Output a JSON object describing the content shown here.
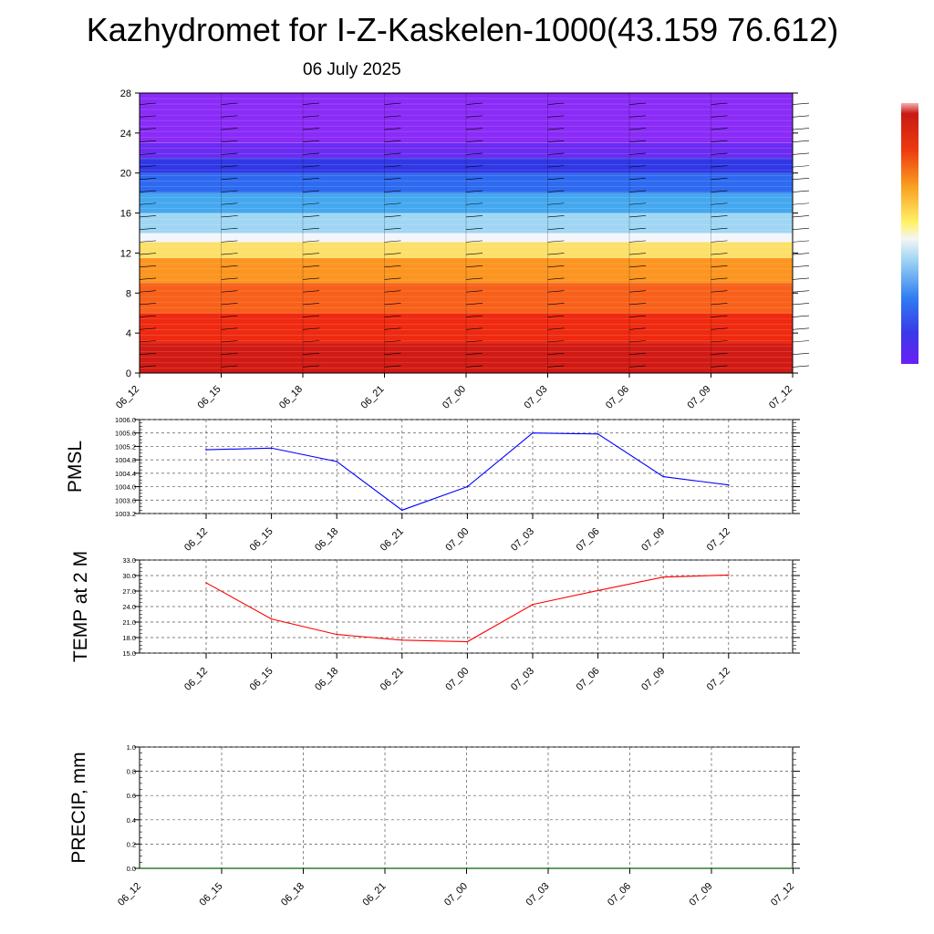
{
  "header": {
    "title": "Kazhydromet for I-Z-Kaskelen-1000(43.159 76.612)",
    "subtitle": "06 July 2025"
  },
  "colors": {
    "pmsl_line": "#0000ff",
    "temp_line": "#ff0000",
    "precip_line": "#006400",
    "grid": "#555555"
  },
  "chart_data": [
    {
      "type": "heatmap",
      "name": "vertical-profile",
      "xlabel": "",
      "ylabel": "",
      "x_tick_labels": [
        "06_12",
        "06_15",
        "06_18",
        "06_21",
        "07_00",
        "07_03",
        "07_06",
        "07_09",
        "07_12"
      ],
      "y_ticks": [
        0,
        4,
        8,
        12,
        16,
        20,
        24,
        28
      ],
      "ylim": [
        0,
        28
      ],
      "colorbar": "blue-violet-to-dark-red",
      "color_bands": [
        {
          "from": 0,
          "to": 3,
          "color": "#d11a14"
        },
        {
          "from": 3,
          "to": 6,
          "color": "#ef2a10"
        },
        {
          "from": 6,
          "to": 9,
          "color": "#f8601a"
        },
        {
          "from": 9,
          "to": 11.5,
          "color": "#fb9520"
        },
        {
          "from": 11.5,
          "to": 13.1,
          "color": "#fde06a"
        },
        {
          "from": 13.1,
          "to": 14,
          "color": "#f2f6fb"
        },
        {
          "from": 14,
          "to": 16,
          "color": "#9fd6f4"
        },
        {
          "from": 16,
          "to": 18,
          "color": "#45a8ef"
        },
        {
          "from": 18,
          "to": 20,
          "color": "#2e6af0"
        },
        {
          "from": 20,
          "to": 21.5,
          "color": "#3037e4"
        },
        {
          "from": 21.5,
          "to": 23,
          "color": "#6b2cf2"
        },
        {
          "from": 23,
          "to": 28,
          "color": "#8a2bf7"
        }
      ]
    },
    {
      "type": "line",
      "name": "pmsl",
      "ylabel": "PMSL",
      "categories": [
        "06_12",
        "06_15",
        "06_18",
        "06_21",
        "07_00",
        "07_03",
        "07_06",
        "07_09",
        "07_12"
      ],
      "values": [
        1005.1,
        1005.15,
        1004.75,
        1003.3,
        1004.0,
        1005.6,
        1005.57,
        1004.3,
        1004.05
      ],
      "ylim": [
        1003.2,
        1006.0
      ],
      "y_ticks": [
        "1003.2",
        "1003.6",
        "1004.0",
        "1004.4",
        "1004.8",
        "1005.2",
        "1005.6",
        "1006.0"
      ],
      "grid": true
    },
    {
      "type": "line",
      "name": "temp-2m",
      "ylabel": "TEMP at 2 M",
      "categories": [
        "06_12",
        "06_15",
        "06_18",
        "06_21",
        "07_00",
        "07_03",
        "07_06",
        "07_09",
        "07_12"
      ],
      "values": [
        28.6,
        21.6,
        18.6,
        17.5,
        17.2,
        24.4,
        27.1,
        29.7,
        30.1
      ],
      "ylim": [
        15.0,
        33.0
      ],
      "y_ticks": [
        "15.0",
        "18.0",
        "21.0",
        "24.0",
        "27.0",
        "30.0",
        "33.0"
      ],
      "grid": true
    },
    {
      "type": "line",
      "name": "precip",
      "ylabel": "PRECIP, mm",
      "x_tick_labels": [
        "06_12",
        "06_15",
        "06_18",
        "06_21",
        "07_00",
        "07_03",
        "07_06",
        "07_09",
        "07_12"
      ],
      "values": [
        0,
        0,
        0,
        0,
        0,
        0,
        0,
        0,
        0
      ],
      "ylim": [
        0.0,
        1.0
      ],
      "y_ticks": [
        "0.0",
        "0.2",
        "0.4",
        "0.6",
        "0.8",
        "1.0"
      ],
      "grid": true
    }
  ]
}
